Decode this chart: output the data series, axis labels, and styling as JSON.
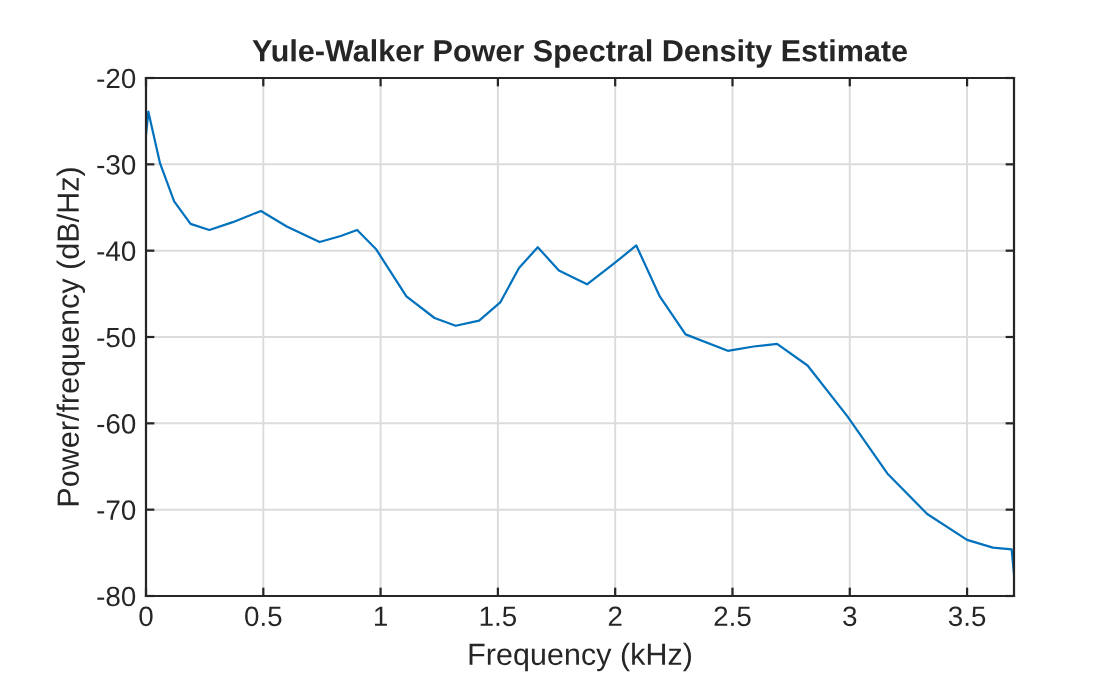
{
  "chart_data": {
    "type": "line",
    "title": "Yule-Walker Power Spectral Density Estimate",
    "xlabel": "Frequency (kHz)",
    "ylabel": "Power/frequency (dB/Hz)",
    "x": [
      0.0,
      0.01,
      0.06,
      0.12,
      0.19,
      0.27,
      0.37,
      0.49,
      0.6,
      0.74,
      0.83,
      0.9,
      0.98,
      1.11,
      1.23,
      1.32,
      1.42,
      1.51,
      1.59,
      1.67,
      1.76,
      1.88,
      1.99,
      2.09,
      2.19,
      2.3,
      2.48,
      2.59,
      2.69,
      2.82,
      2.99,
      3.16,
      3.33,
      3.5,
      3.61,
      3.69,
      3.7
    ],
    "series": [
      {
        "color": "#0072bd",
        "values": [
          -26.6,
          -23.9,
          -29.9,
          -34.3,
          -36.9,
          -37.6,
          -36.7,
          -35.4,
          -37.2,
          -39.0,
          -38.3,
          -37.6,
          -39.8,
          -45.3,
          -47.8,
          -48.7,
          -48.1,
          -46.0,
          -42.0,
          -39.6,
          -42.3,
          -43.9,
          -41.6,
          -39.4,
          -45.3,
          -49.7,
          -51.6,
          -51.1,
          -50.8,
          -53.3,
          -59.2,
          -65.8,
          -70.5,
          -73.5,
          -74.4,
          -74.6,
          -77.5
        ]
      }
    ],
    "xlim": [
      0,
      3.7
    ],
    "ylim": [
      -80,
      -20
    ],
    "xticks": [
      0,
      0.5,
      1,
      1.5,
      2,
      2.5,
      3,
      3.5
    ],
    "yticks": [
      -80,
      -70,
      -60,
      -50,
      -40,
      -30,
      -20
    ],
    "grid": true,
    "legend": false,
    "marker": "none",
    "line_style": "solid"
  }
}
